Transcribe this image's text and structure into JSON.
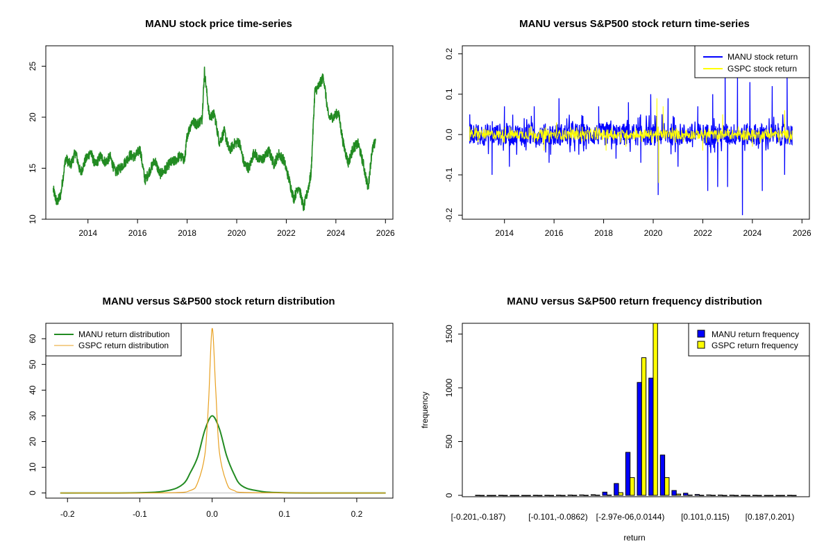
{
  "chart_data": [
    {
      "type": "line",
      "title": "MANU stock price time-series",
      "xlabel": "",
      "ylabel": "",
      "xlim": [
        2012.3,
        2026.3
      ],
      "ylim": [
        10,
        27
      ],
      "xticks": [
        "2014",
        "2016",
        "2018",
        "2020",
        "2022",
        "2024",
        "2026"
      ],
      "yticks": [
        "10",
        "15",
        "20",
        "25"
      ],
      "series": [
        {
          "name": "MANU",
          "color": "#228B22",
          "x": [
            2012.6,
            2012.75,
            2012.9,
            2013.1,
            2013.3,
            2013.5,
            2013.7,
            2013.9,
            2014.1,
            2014.3,
            2014.5,
            2014.7,
            2014.9,
            2015.1,
            2015.3,
            2015.5,
            2015.7,
            2015.9,
            2016.1,
            2016.3,
            2016.5,
            2016.7,
            2016.9,
            2017.1,
            2017.3,
            2017.5,
            2017.7,
            2017.9,
            2018.0,
            2018.2,
            2018.4,
            2018.6,
            2018.7,
            2018.9,
            2019.1,
            2019.3,
            2019.5,
            2019.7,
            2019.9,
            2020.1,
            2020.3,
            2020.5,
            2020.7,
            2020.9,
            2021.1,
            2021.3,
            2021.5,
            2021.7,
            2021.9,
            2022.1,
            2022.3,
            2022.5,
            2022.7,
            2022.9,
            2023.0,
            2023.15,
            2023.3,
            2023.5,
            2023.7,
            2023.9,
            2024.1,
            2024.3,
            2024.5,
            2024.7,
            2024.9,
            2025.1,
            2025.3,
            2025.45,
            2025.6
          ],
          "values": [
            12.9,
            11.6,
            12.4,
            16.0,
            15.3,
            16.6,
            14.5,
            15.8,
            16.6,
            15.3,
            16.2,
            15.6,
            16.1,
            14.6,
            15.0,
            15.6,
            16.3,
            16.1,
            16.9,
            13.8,
            14.8,
            15.8,
            14.4,
            14.8,
            15.5,
            15.7,
            16.2,
            15.8,
            18.2,
            19.6,
            19.3,
            19.8,
            24.5,
            20.0,
            20.3,
            17.5,
            18.6,
            16.7,
            17.4,
            17.6,
            15.4,
            15.0,
            16.6,
            15.8,
            16.0,
            16.7,
            15.4,
            16.4,
            15.8,
            14.0,
            12.0,
            13.3,
            11.1,
            13.2,
            14.5,
            22.5,
            23.0,
            24.0,
            20.0,
            20.0,
            20.5,
            17.4,
            15.5,
            17.0,
            17.4,
            15.5,
            13.0,
            16.6,
            17.7
          ]
        }
      ]
    },
    {
      "type": "line",
      "title": "MANU versus S&P500 stock return time-series",
      "xlabel": "",
      "ylabel": "",
      "xlim": [
        2012.3,
        2026.3
      ],
      "ylim": [
        -0.21,
        0.22
      ],
      "xticks": [
        "2014",
        "2016",
        "2018",
        "2020",
        "2022",
        "2024",
        "2026"
      ],
      "yticks": [
        "-0.2",
        "-0.1",
        "0.0",
        "0.1",
        "0.2"
      ],
      "legend": {
        "position": "top-right",
        "entries": [
          "MANU stock return",
          "GSPC stock return"
        ]
      },
      "series": [
        {
          "name": "MANU stock return",
          "color": "#0000FF",
          "x": [
            2012.6,
            2013.5,
            2014.0,
            2014.2,
            2015.2,
            2015.8,
            2016.2,
            2017.0,
            2017.8,
            2018.5,
            2019.0,
            2019.5,
            2019.9,
            2020.2,
            2020.6,
            2021.0,
            2021.8,
            2022.2,
            2022.4,
            2022.6,
            2022.9,
            2023.0,
            2023.4,
            2023.6,
            2023.9,
            2024.4,
            2024.8,
            2025.3,
            2025.4,
            2025.6
          ],
          "values": [
            0.05,
            -0.1,
            0.07,
            -0.08,
            0.07,
            -0.07,
            0.09,
            -0.05,
            0.07,
            -0.06,
            0.08,
            -0.07,
            0.1,
            -0.15,
            0.09,
            -0.08,
            0.07,
            -0.14,
            0.1,
            -0.13,
            0.18,
            -0.13,
            0.14,
            -0.2,
            0.13,
            -0.14,
            0.12,
            -0.1,
            0.16,
            0.02
          ]
        },
        {
          "name": "GSPC stock return",
          "color": "#FFFF00",
          "x": [
            2012.6,
            2014.0,
            2015.6,
            2016.1,
            2018.1,
            2018.9,
            2020.15,
            2020.22,
            2020.4,
            2022.0,
            2022.8,
            2024.0,
            2025.3,
            2025.6
          ],
          "values": [
            0.02,
            -0.02,
            -0.04,
            0.03,
            -0.04,
            -0.03,
            0.09,
            -0.12,
            0.07,
            -0.04,
            0.05,
            -0.03,
            0.06,
            0.01
          ]
        }
      ]
    },
    {
      "type": "line",
      "title": "MANU versus S&P500 stock return distribution",
      "xlabel": "",
      "ylabel": "",
      "xlim": [
        -0.23,
        0.25
      ],
      "ylim": [
        -2,
        66
      ],
      "xticks": [
        "-0.2",
        "-0.1",
        "0.0",
        "0.1",
        "0.2"
      ],
      "yticks": [
        "0",
        "10",
        "20",
        "30",
        "40",
        "50",
        "60"
      ],
      "legend": {
        "position": "top-left",
        "entries": [
          "MANU return distribution",
          "GSPC return distribution"
        ]
      },
      "series": [
        {
          "name": "MANU return distribution",
          "color": "#228B22",
          "x": [
            -0.21,
            -0.1,
            -0.06,
            -0.04,
            -0.03,
            -0.02,
            -0.01,
            0.0,
            0.01,
            0.02,
            0.03,
            0.04,
            0.06,
            0.1,
            0.24
          ],
          "values": [
            0,
            0.1,
            1.0,
            3.5,
            8.0,
            14.0,
            24.5,
            30.0,
            25.0,
            14.5,
            7.5,
            3.0,
            1.0,
            0.1,
            0
          ]
        },
        {
          "name": "GSPC return distribution",
          "color": "#E8A020",
          "x": [
            -0.21,
            -0.06,
            -0.03,
            -0.02,
            -0.01,
            -0.005,
            0.0,
            0.005,
            0.01,
            0.02,
            0.03,
            0.06,
            0.24
          ],
          "values": [
            0,
            0.1,
            1.0,
            4.0,
            15.0,
            35.0,
            64.0,
            40.0,
            16.0,
            4.0,
            1.0,
            0.1,
            0
          ]
        }
      ]
    },
    {
      "type": "bar",
      "title": "MANU versus S&P500 return frequency distribution",
      "xlabel": "return",
      "ylabel": "frequency",
      "ylim": [
        0,
        1600
      ],
      "yticks": [
        "0",
        "500",
        "1000",
        "1500"
      ],
      "category_labels": [
        "[-0.201,-0.187)",
        "[-0.101,-0.0862)",
        "[-2.97e-06,0.0144)",
        "[0.101,0.115)",
        "[0.187,0.201)"
      ],
      "legend": {
        "position": "top-right",
        "entries": [
          "MANU return frequency",
          "GSPC return frequency"
        ]
      },
      "series": [
        {
          "name": "MANU return frequency",
          "color": "#0000FF",
          "values": [
            1,
            0,
            1,
            0,
            0,
            1,
            1,
            2,
            3,
            4,
            6,
            30,
            110,
            400,
            1050,
            1090,
            375,
            45,
            20,
            8,
            4,
            3,
            2,
            1,
            1,
            0,
            0,
            1
          ]
        },
        {
          "name": "GSPC return frequency",
          "color": "#FFFF00",
          "values": [
            0,
            0,
            0,
            0,
            0,
            0,
            0,
            0,
            1,
            1,
            2,
            3,
            25,
            165,
            1280,
            1600,
            165,
            12,
            3,
            1,
            1,
            0,
            0,
            0,
            0,
            0,
            0,
            0
          ]
        }
      ]
    }
  ]
}
